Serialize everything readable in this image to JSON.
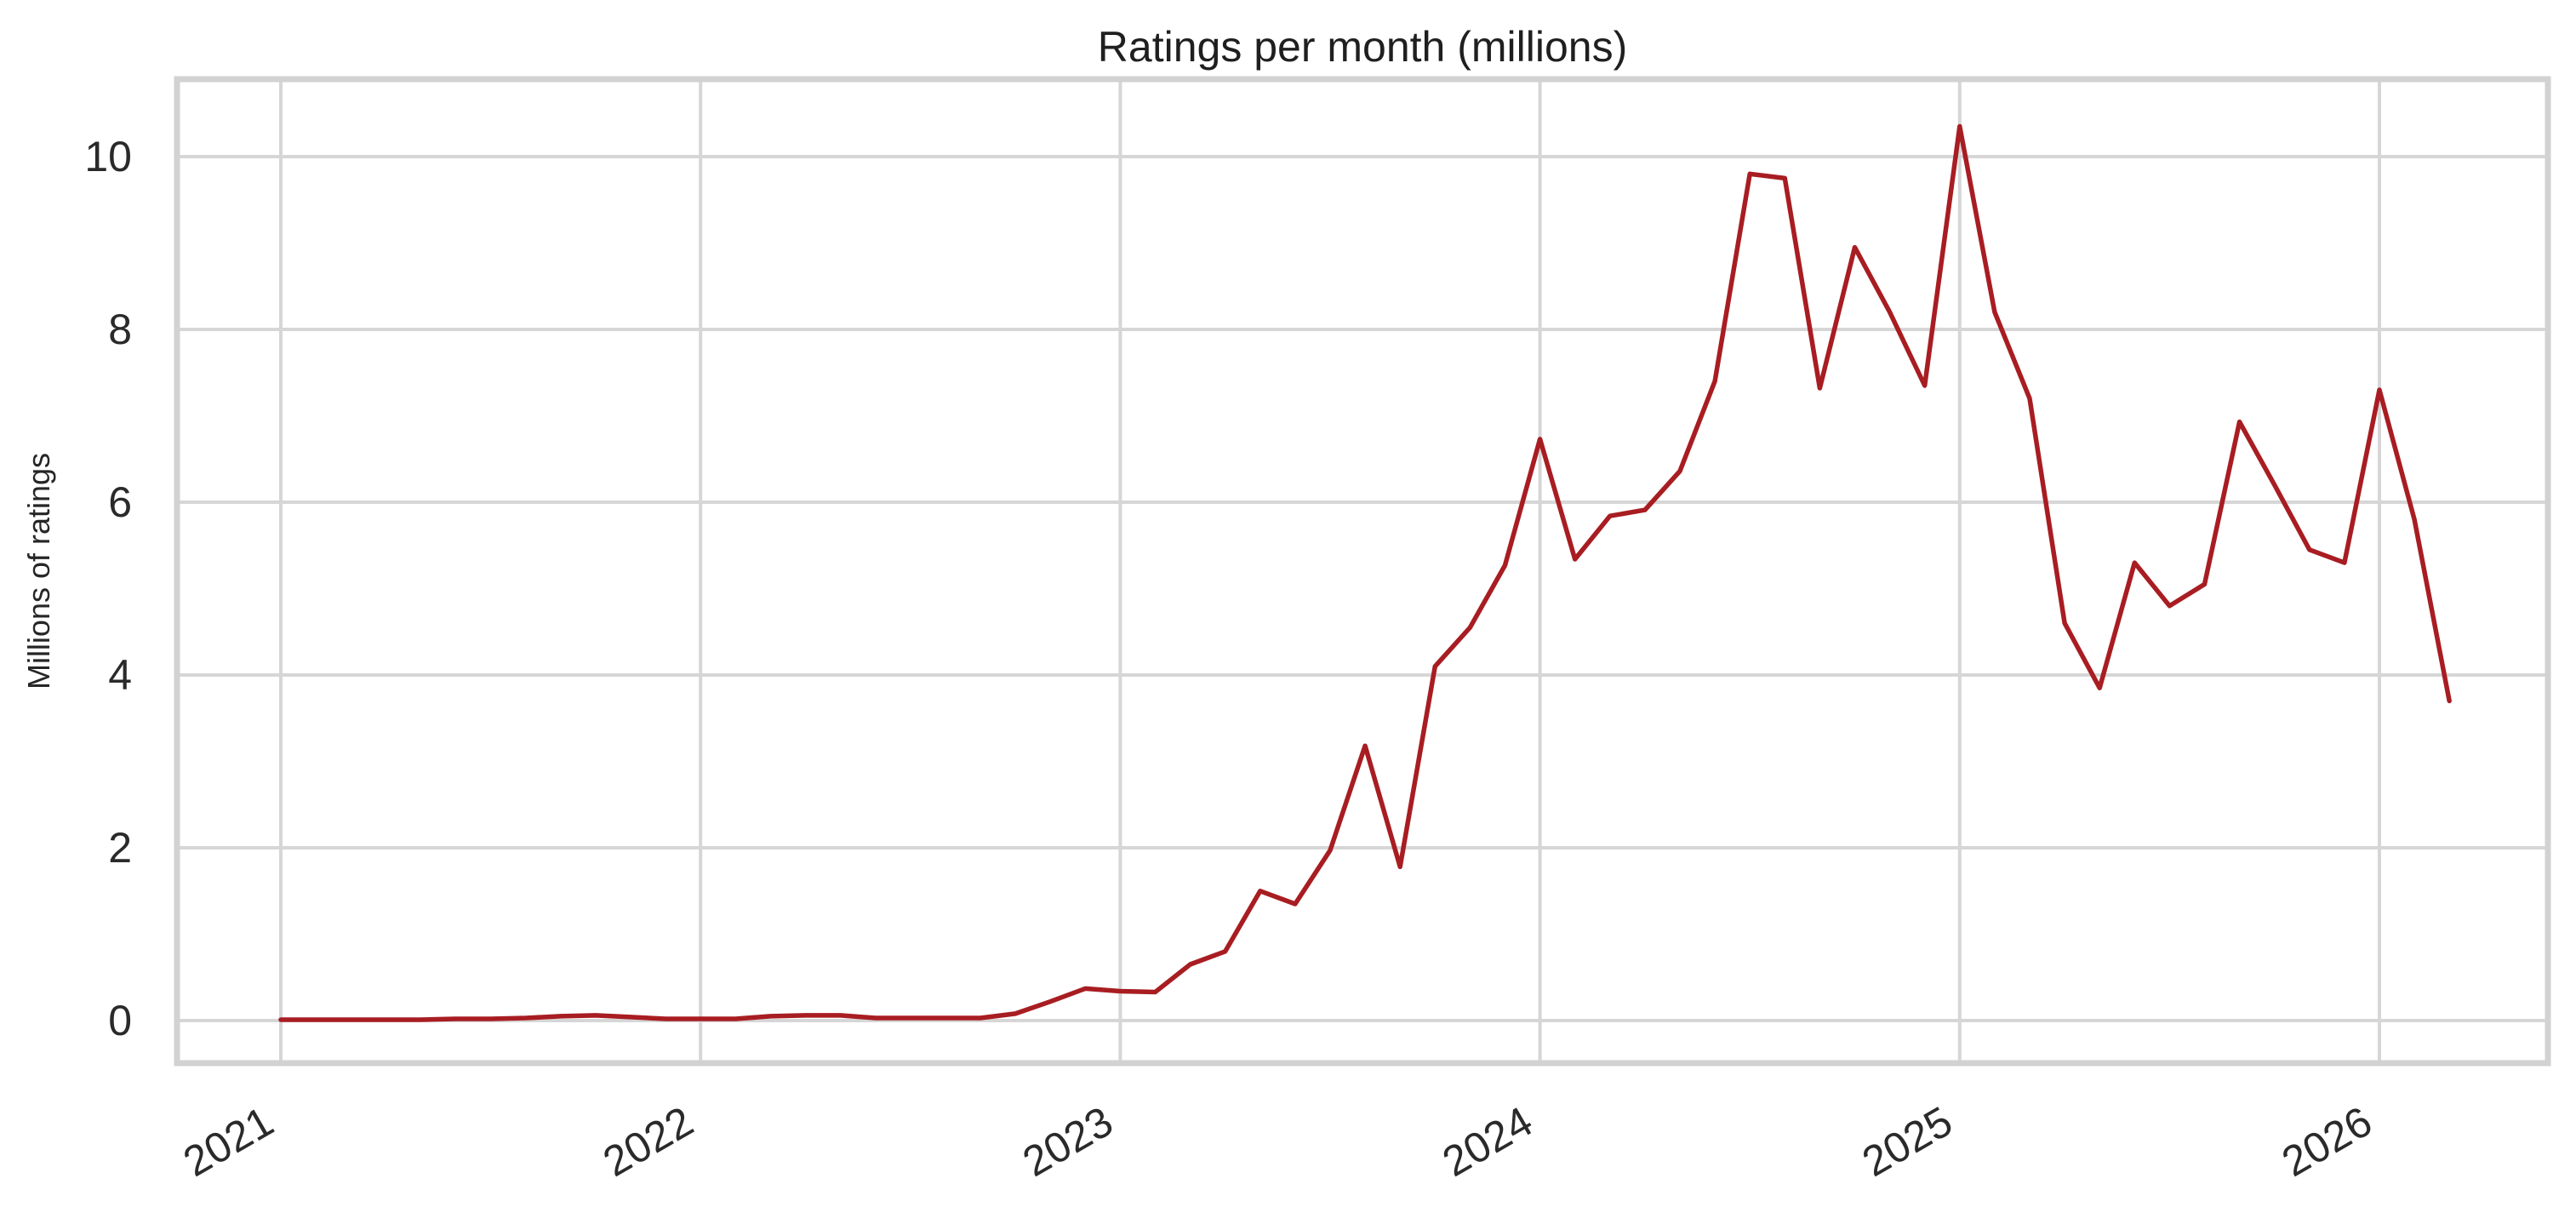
{
  "chart_data": {
    "type": "line",
    "title": "Ratings per month (millions)",
    "xlabel": "",
    "ylabel": "Millions of ratings",
    "x_tick_labels": [
      "2021",
      "2022",
      "2023",
      "2024",
      "2025",
      "2026"
    ],
    "y_tick_labels": [
      "0",
      "2",
      "4",
      "6",
      "8",
      "10"
    ],
    "y_ticks": [
      0,
      2,
      4,
      6,
      8,
      10
    ],
    "ylim": [
      -0.49,
      10.9
    ],
    "x_start_month": "2021-01",
    "x_end_month": "2026-03",
    "grid": true,
    "legend_position": "none",
    "x_tick_rotation_deg": 30,
    "series": [
      {
        "name": "Ratings per month (millions)",
        "color": "#a81d22",
        "values": [
          0.01,
          0.01,
          0.01,
          0.01,
          0.01,
          0.02,
          0.02,
          0.03,
          0.05,
          0.06,
          0.04,
          0.02,
          0.02,
          0.02,
          0.05,
          0.06,
          0.06,
          0.03,
          0.03,
          0.03,
          0.03,
          0.08,
          0.22,
          0.37,
          0.34,
          0.33,
          0.65,
          0.8,
          1.5,
          1.35,
          1.97,
          3.18,
          1.78,
          4.1,
          4.55,
          5.27,
          6.73,
          5.34,
          5.84,
          5.91,
          6.36,
          7.4,
          9.8,
          9.75,
          7.32,
          8.95,
          8.2,
          7.35,
          10.35,
          8.2,
          7.2,
          4.6,
          3.85,
          5.3,
          4.8,
          5.05,
          6.93,
          6.2,
          5.45,
          5.3,
          7.3,
          5.8,
          3.7
        ]
      }
    ]
  },
  "colors": {
    "line": "#a81d22",
    "grid": "#d6d6d6",
    "axes_border": "#d2d2d2",
    "text": "#262626",
    "background": "#ffffff"
  }
}
